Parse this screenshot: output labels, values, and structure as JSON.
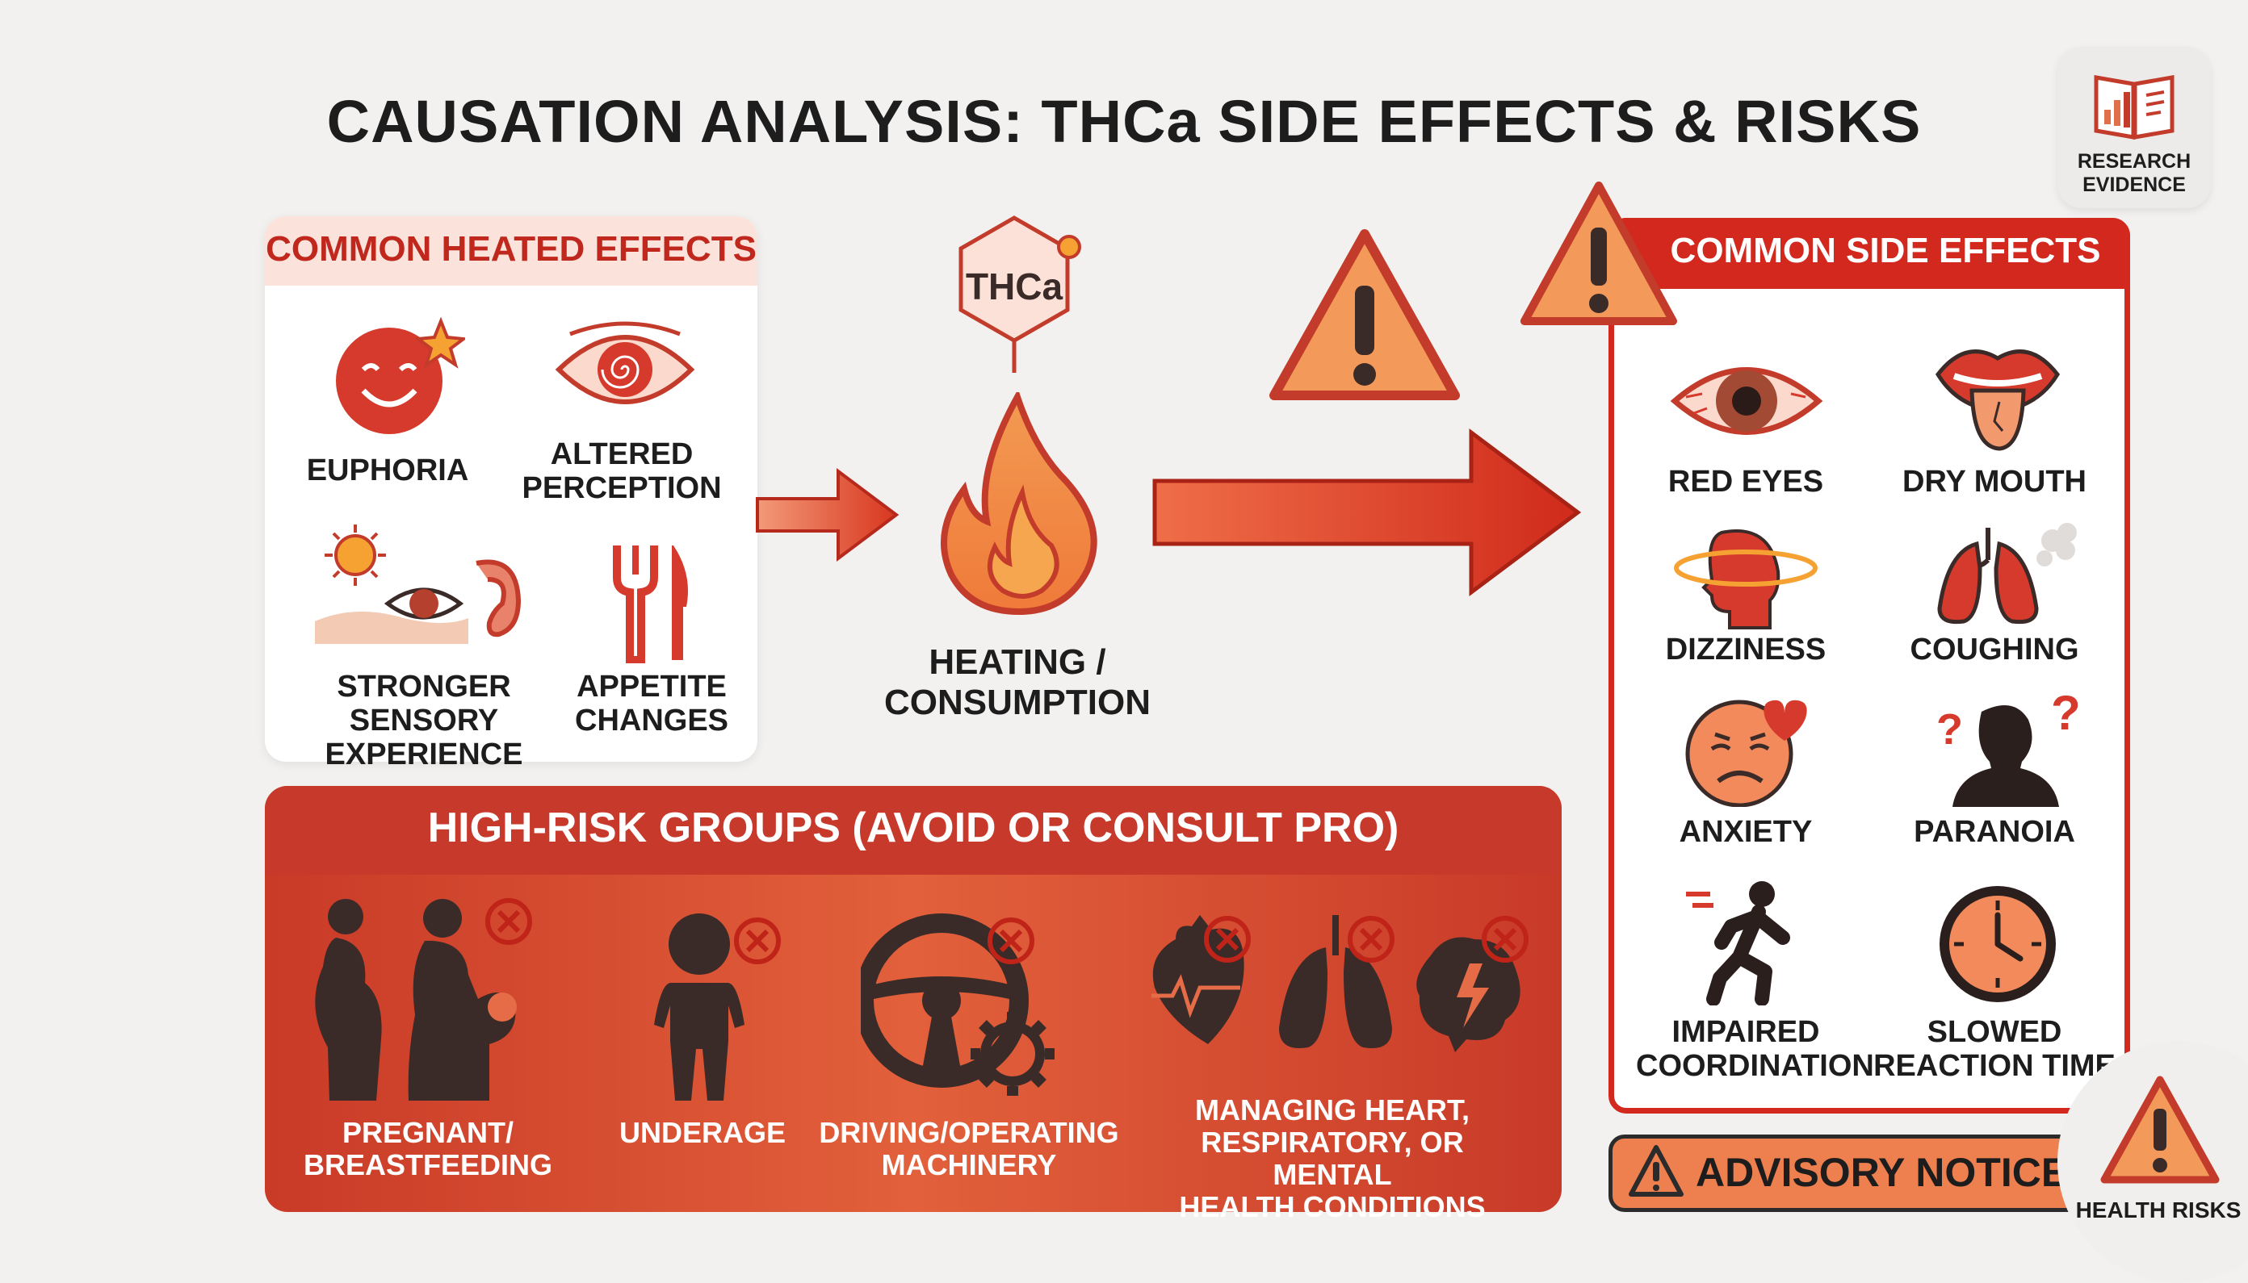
{
  "title": "CAUSATION ANALYSIS: THCa SIDE EFFECTS & RISKS",
  "research_badge": {
    "label_line1": "RESEARCH",
    "label_line2": "EVIDENCE",
    "icon": "book-chart-icon"
  },
  "heated_effects": {
    "title": "COMMON HEATED EFFECTS",
    "items": [
      {
        "line1": "EUPHORIA",
        "line2": "",
        "icon": "smiley-star-icon"
      },
      {
        "line1": "ALTERED",
        "line2": "PERCEPTION",
        "icon": "spiral-eye-icon"
      },
      {
        "line1": "STRONGER SENSORY",
        "line2": "EXPERIENCE",
        "icon": "sun-eye-ear-icon"
      },
      {
        "line1": "APPETITE",
        "line2": "CHANGES",
        "icon": "fork-knife-icon"
      }
    ]
  },
  "center": {
    "hex_label": "THCa",
    "line1": "HEATING /",
    "line2": "CONSUMPTION",
    "icon": "flame-icon"
  },
  "side_effects": {
    "title": "COMMON SIDE EFFECTS",
    "items": [
      {
        "line1": "RED EYES",
        "line2": "",
        "icon": "red-eye-icon"
      },
      {
        "line1": "DRY MOUTH",
        "line2": "",
        "icon": "mouth-icon"
      },
      {
        "line1": "DIZZINESS",
        "line2": "",
        "icon": "dizzy-head-icon"
      },
      {
        "line1": "COUGHING",
        "line2": "",
        "icon": "lungs-smoke-icon"
      },
      {
        "line1": "ANXIETY",
        "line2": "",
        "icon": "anxious-face-icon"
      },
      {
        "line1": "PARANOIA",
        "line2": "",
        "icon": "paranoid-person-icon"
      },
      {
        "line1": "IMPAIRED",
        "line2": "COORDINATION",
        "icon": "stumbling-person-icon"
      },
      {
        "line1": "SLOWED",
        "line2": "REACTION TIME",
        "icon": "clock-icon"
      }
    ]
  },
  "risk_groups": {
    "title": "HIGH-RISK GROUPS (AVOID OR CONSULT PRO)",
    "items": [
      {
        "line1": "PREGNANT/",
        "line2": "BREASTFEEDING",
        "line3": "",
        "icon": "pregnant-mother-icon"
      },
      {
        "line1": "UNDERAGE",
        "line2": "",
        "line3": "",
        "icon": "child-icon"
      },
      {
        "line1": "DRIVING/OPERATING",
        "line2": "MACHINERY",
        "line3": "",
        "icon": "steering-wheel-gear-icon"
      },
      {
        "line1": "MANAGING HEART,",
        "line2": "RESPIRATORY, OR MENTAL",
        "line3": "HEALTH CONDITIONS",
        "icon": "heart-lungs-brain-icon"
      }
    ]
  },
  "advisory": {
    "label": "ADVISORY NOTICE"
  },
  "health_badge": {
    "label": "HEALTH RISKS"
  },
  "colors": {
    "accent_red": "#d3281d",
    "orange": "#ee7f4f",
    "dark": "#3a2a28",
    "background": "#f3f1f0"
  }
}
